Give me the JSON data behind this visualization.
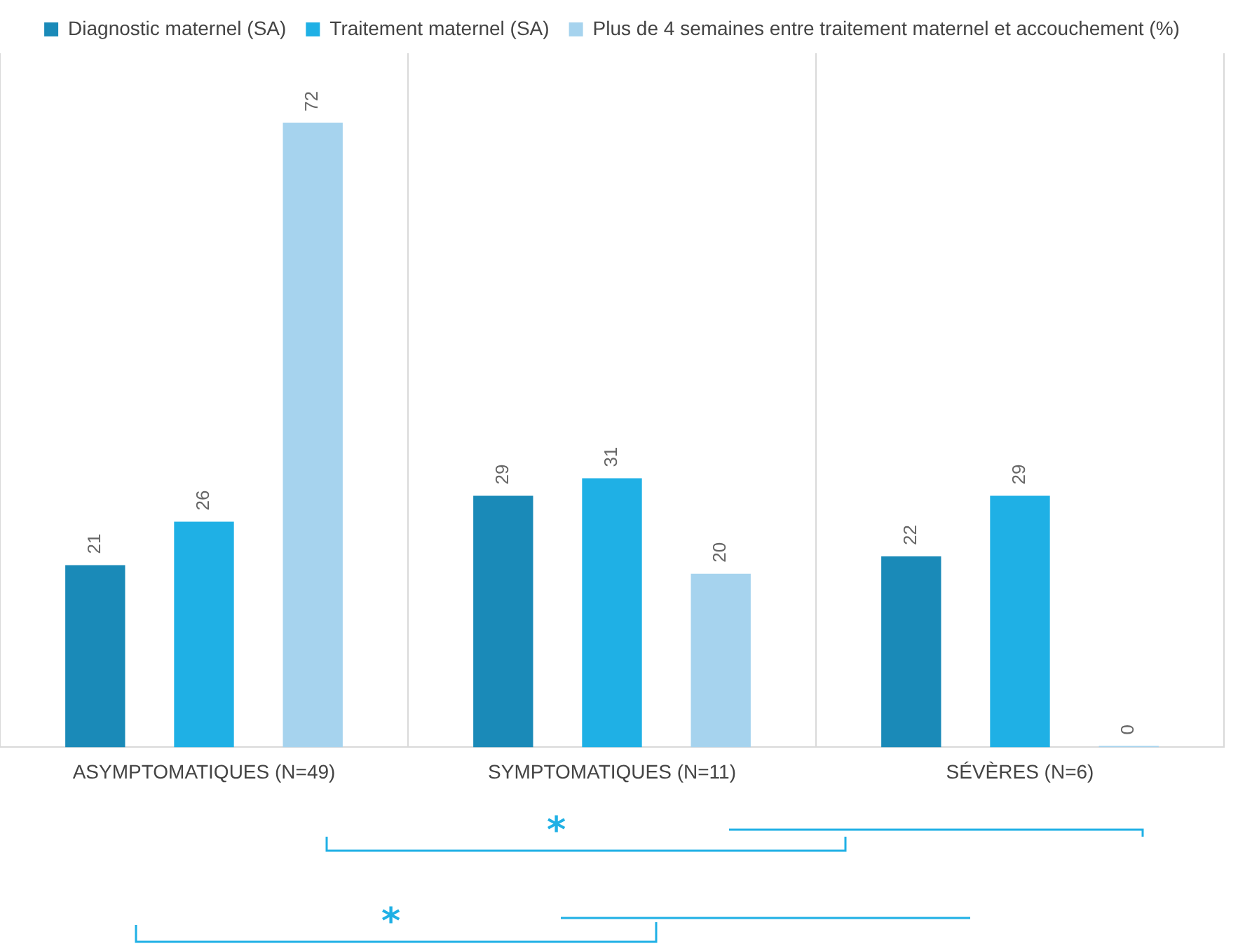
{
  "chart_data": {
    "type": "bar",
    "categories": [
      "ASYMPTOMATIQUES (N=49)",
      "SYMPTOMATIQUES (N=11)",
      "SÉVÈRES (N=6)"
    ],
    "series": [
      {
        "name": "Diagnostic maternel (SA)",
        "color": "#1a8ab8",
        "values": [
          21,
          29,
          22
        ]
      },
      {
        "name": "Traitement maternel (SA)",
        "color": "#1fb0e5",
        "values": [
          26,
          31,
          29
        ]
      },
      {
        "name": "Plus de 4 semaines entre traitement maternel et accouchement (%)",
        "color": "#a6d3ee",
        "values": [
          72,
          20,
          0
        ]
      }
    ],
    "ylim": [
      0,
      80
    ],
    "tick_labels": "x",
    "grid": "x",
    "legend": "top",
    "data_labels": true,
    "annotations": [
      "*",
      "*"
    ]
  }
}
